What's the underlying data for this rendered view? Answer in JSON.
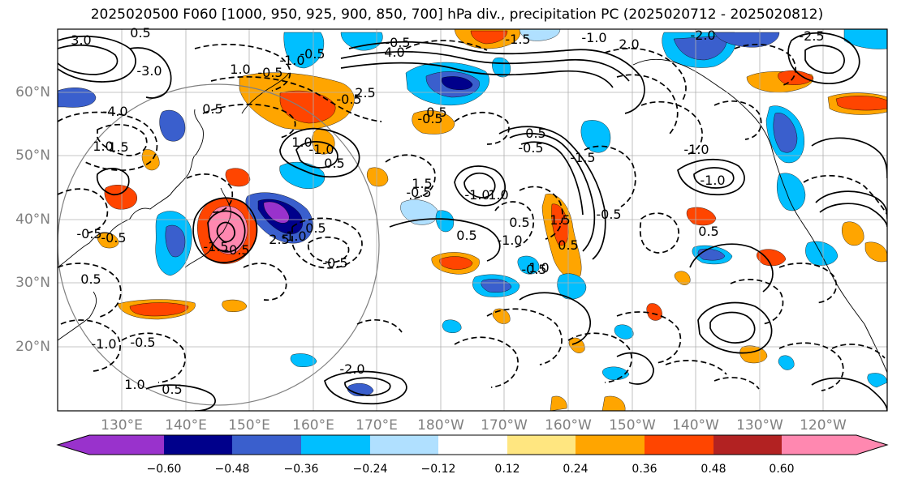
{
  "title": "2025020500 F060 [1000, 950, 925, 900, 850, 700] hPa div., precipitation PC (2025020712 - 2025020812)",
  "lat_labels": [
    "60°N",
    "50°N",
    "40°N",
    "30°N",
    "20°N"
  ],
  "lon_labels": [
    "130°E",
    "140°E",
    "150°E",
    "160°E",
    "170°E",
    "180°W",
    "170°W",
    "160°W",
    "150°W",
    "140°W",
    "130°W",
    "120°W"
  ],
  "colorbar": {
    "ticks": [
      "−0.60",
      "−0.48",
      "−0.36",
      "−0.24",
      "−0.12",
      "0.12",
      "0.24",
      "0.36",
      "0.48",
      "0.60"
    ],
    "colors": [
      "#9932cc",
      "#00008b",
      "#3a5fcd",
      "#00bfff",
      "#b0e0ff",
      "#ffffff",
      "#ffe680",
      "#ffa500",
      "#ff4500",
      "#b22222",
      "#ff88b0"
    ]
  },
  "contour_labels": [
    "3.0",
    "4.0",
    "2.0",
    "0.5",
    "-0.5",
    "-1.0",
    "-1.5",
    "-2.0",
    "-2.5",
    "-3.0",
    "-4.0",
    "1.0",
    "1.5",
    "0.5",
    "-0.5",
    "-1.0",
    "-0.5",
    "2.5",
    "-0.5",
    "1.0",
    "-0.5",
    "0.5",
    "1.0",
    "-1.0",
    "0.5",
    "1.5",
    "-0.5",
    "-1.0",
    "1.0",
    "0.5",
    "-0.5",
    "-1.5",
    "0.5",
    "-1.0",
    "1.0",
    "0.5",
    "-0.5",
    "1.5",
    "-0.5",
    "0.5",
    "-0.5",
    "0.5",
    "-1.0",
    "-1.5",
    "-0.5",
    "2.5",
    "-0.5",
    "-0.5",
    "0.5",
    "-1.0",
    "-0.5",
    "1.0",
    "0.5",
    "-2.0",
    "-1.0",
    "-1.0",
    "0.5"
  ]
}
